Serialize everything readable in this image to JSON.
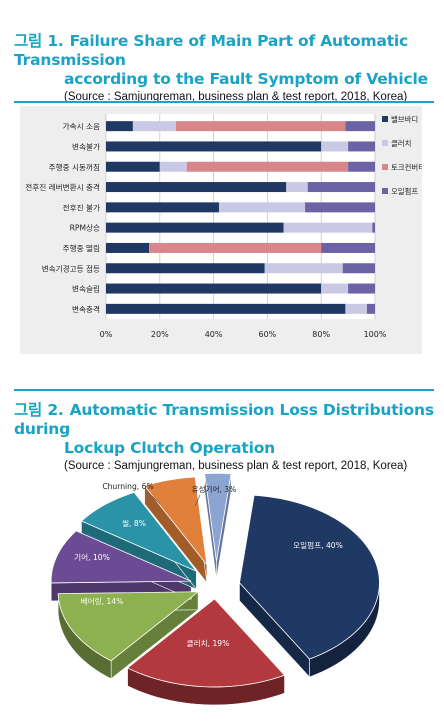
{
  "figure1": {
    "number": "그림 1.",
    "title_line1": "Failure Share of Main Part of Automatic Transmission",
    "title_line2": "according to the Fault Symptom of Vehicle",
    "source": "(Source : Samjungreman, business plan & test report, 2018, Korea)"
  },
  "figure2": {
    "number": "그림 2.",
    "title_line1": "Automatic Transmission Loss Distributions during",
    "title_line2": "Lockup Clutch Operation",
    "source": "(Source : Samjungreman, business plan & test report, 2018, Korea)"
  },
  "colors": {
    "title": "#1aa3c4",
    "valve_body": "#1f3864",
    "clutch": "#c9c9e6",
    "torque_converter": "#d9868b",
    "oil_pump": "#6c63a7"
  },
  "chart_data": [
    {
      "type": "bar",
      "orientation": "horizontal",
      "stacked": "percent",
      "categories": [
        "가속시 소음",
        "변속불가",
        "주행중 시동꺼짐",
        "전후진 레버변환시 충격",
        "전후진 불가",
        "RPM상승",
        "주행중 떨림",
        "변속기경고등 점등",
        "변속슬립",
        "변속충격"
      ],
      "series": [
        {
          "name": "밸브바디",
          "values": [
            10,
            80,
            20,
            67,
            42,
            66,
            16,
            59,
            80,
            89
          ]
        },
        {
          "name": "클러치",
          "values": [
            16,
            10,
            10,
            8,
            32,
            33,
            0,
            29,
            10,
            8
          ]
        },
        {
          "name": "토크컨버터",
          "values": [
            63,
            0,
            60,
            0,
            0,
            0,
            64,
            0,
            0,
            0
          ]
        },
        {
          "name": "오일펌프",
          "values": [
            11,
            10,
            10,
            25,
            26,
            1,
            20,
            12,
            10,
            3
          ]
        }
      ],
      "xticks": [
        "0%",
        "20%",
        "40%",
        "60%",
        "80%",
        "100%"
      ],
      "xlim": [
        0,
        100
      ],
      "grid": true,
      "legend": "right"
    },
    {
      "type": "pie",
      "style": "3d-exploded",
      "slices": [
        {
          "name": "오일펌프",
          "label": "오일펌프, 40%",
          "value": 40,
          "color": "#1f3864"
        },
        {
          "name": "클러치",
          "label": "클러치, 19%",
          "value": 19,
          "color": "#b23a3e"
        },
        {
          "name": "베어링",
          "label": "베어링, 14%",
          "value": 14,
          "color": "#8db050"
        },
        {
          "name": "기어",
          "label": "기어, 10%",
          "value": 10,
          "color": "#6b4c94"
        },
        {
          "name": "씰",
          "label": "씰, 8%",
          "value": 8,
          "color": "#2a93a8"
        },
        {
          "name": "Churning",
          "label": "Churning, 6%",
          "value": 6,
          "color": "#e0803a"
        },
        {
          "name": "유성기어",
          "label": "유성기어, 3%",
          "value": 3,
          "color": "#8ca4d2"
        }
      ]
    }
  ]
}
